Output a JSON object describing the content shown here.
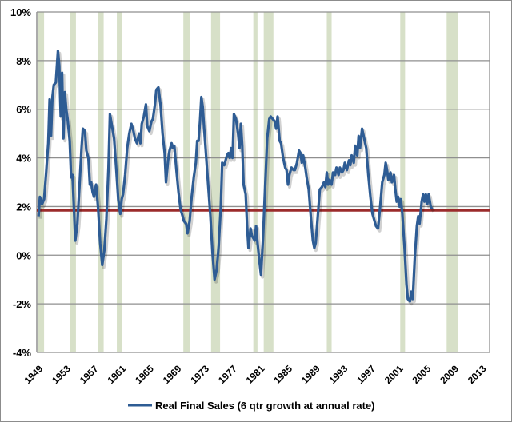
{
  "chart_data": {
    "type": "line",
    "title": "",
    "xlabel": "",
    "ylabel": "",
    "xlim": [
      1948.75,
      2014.1
    ],
    "ylim": [
      -4,
      10
    ],
    "grid": true,
    "legend_position": "bottom",
    "y_ticks": [
      {
        "value": 10,
        "label": "10%"
      },
      {
        "value": 8,
        "label": "8%"
      },
      {
        "value": 6,
        "label": "6%"
      },
      {
        "value": 4,
        "label": "4%"
      },
      {
        "value": 2,
        "label": "2%"
      },
      {
        "value": 0,
        "label": "0%"
      },
      {
        "value": -2,
        "label": "-2%"
      },
      {
        "value": -4,
        "label": "-4%"
      }
    ],
    "x_ticks": [
      "1949",
      "1953",
      "1957",
      "1961",
      "1965",
      "1969",
      "1973",
      "1977",
      "1981",
      "1985",
      "1989",
      "1993",
      "1997",
      "2001",
      "2005",
      "2009",
      "2013"
    ],
    "reference_line": {
      "value": 1.85,
      "color": "#9b2b2b"
    },
    "recessions": [
      [
        1948.9,
        1949.8
      ],
      [
        1953.5,
        1954.4
      ],
      [
        1957.6,
        1958.4
      ],
      [
        1960.3,
        1961.1
      ],
      [
        1969.9,
        1970.9
      ],
      [
        1973.9,
        1975.2
      ],
      [
        1980.0,
        1980.6
      ],
      [
        1981.5,
        1982.9
      ],
      [
        1990.6,
        1991.3
      ],
      [
        2001.2,
        2001.9
      ],
      [
        2007.9,
        2009.5
      ]
    ],
    "recession_color": "#d7e0c8",
    "series": [
      {
        "name": "Real Final Sales (6 qtr growth at annual rate)",
        "color": "#2e5c94",
        "points": [
          [
            1949.0,
            1.6
          ],
          [
            1949.2,
            2.4
          ],
          [
            1949.5,
            2.1
          ],
          [
            1949.8,
            2.3
          ],
          [
            1950.1,
            3.4
          ],
          [
            1950.4,
            4.6
          ],
          [
            1950.6,
            6.4
          ],
          [
            1950.8,
            4.9
          ],
          [
            1951.0,
            6.5
          ],
          [
            1951.2,
            7.0
          ],
          [
            1951.5,
            7.1
          ],
          [
            1951.8,
            8.4
          ],
          [
            1952.0,
            7.8
          ],
          [
            1952.2,
            5.7
          ],
          [
            1952.4,
            7.5
          ],
          [
            1952.6,
            4.8
          ],
          [
            1952.8,
            6.7
          ],
          [
            1953.0,
            6.0
          ],
          [
            1953.2,
            5.6
          ],
          [
            1953.5,
            4.7
          ],
          [
            1953.7,
            3.2
          ],
          [
            1953.9,
            3.3
          ],
          [
            1954.1,
            2.0
          ],
          [
            1954.3,
            0.6
          ],
          [
            1954.6,
            1.3
          ],
          [
            1954.9,
            2.8
          ],
          [
            1955.2,
            4.4
          ],
          [
            1955.4,
            5.2
          ],
          [
            1955.7,
            5.1
          ],
          [
            1955.9,
            4.3
          ],
          [
            1956.2,
            4.0
          ],
          [
            1956.4,
            2.9
          ],
          [
            1956.6,
            3.0
          ],
          [
            1956.8,
            2.6
          ],
          [
            1957.0,
            2.4
          ],
          [
            1957.3,
            2.9
          ],
          [
            1957.6,
            1.9
          ],
          [
            1957.9,
            0.5
          ],
          [
            1958.2,
            -0.4
          ],
          [
            1958.5,
            0.2
          ],
          [
            1958.8,
            1.5
          ],
          [
            1959.1,
            3.6
          ],
          [
            1959.3,
            5.8
          ],
          [
            1959.6,
            5.3
          ],
          [
            1959.9,
            4.8
          ],
          [
            1960.2,
            3.6
          ],
          [
            1960.5,
            2.3
          ],
          [
            1960.8,
            1.7
          ],
          [
            1961.0,
            2.3
          ],
          [
            1961.2,
            2.5
          ],
          [
            1961.5,
            3.3
          ],
          [
            1961.8,
            4.4
          ],
          [
            1962.1,
            5.0
          ],
          [
            1962.4,
            5.4
          ],
          [
            1962.7,
            5.1
          ],
          [
            1962.9,
            4.8
          ],
          [
            1963.2,
            4.6
          ],
          [
            1963.5,
            5.0
          ],
          [
            1963.7,
            4.6
          ],
          [
            1963.9,
            5.4
          ],
          [
            1964.2,
            5.7
          ],
          [
            1964.5,
            6.2
          ],
          [
            1964.7,
            5.3
          ],
          [
            1965.0,
            5.1
          ],
          [
            1965.3,
            5.5
          ],
          [
            1965.5,
            5.6
          ],
          [
            1965.8,
            6.2
          ],
          [
            1966.0,
            6.8
          ],
          [
            1966.3,
            6.9
          ],
          [
            1966.6,
            6.2
          ],
          [
            1966.9,
            5.0
          ],
          [
            1967.2,
            4.2
          ],
          [
            1967.4,
            3.0
          ],
          [
            1967.7,
            3.9
          ],
          [
            1967.9,
            4.3
          ],
          [
            1968.2,
            4.6
          ],
          [
            1968.4,
            4.4
          ],
          [
            1968.6,
            4.5
          ],
          [
            1968.9,
            3.5
          ],
          [
            1969.2,
            2.6
          ],
          [
            1969.5,
            1.9
          ],
          [
            1969.8,
            1.6
          ],
          [
            1970.0,
            1.4
          ],
          [
            1970.3,
            1.3
          ],
          [
            1970.5,
            0.9
          ],
          [
            1970.8,
            1.4
          ],
          [
            1971.1,
            2.4
          ],
          [
            1971.4,
            3.2
          ],
          [
            1971.7,
            3.8
          ],
          [
            1971.9,
            4.7
          ],
          [
            1972.1,
            4.7
          ],
          [
            1972.3,
            5.5
          ],
          [
            1972.5,
            6.5
          ],
          [
            1972.7,
            6.1
          ],
          [
            1972.9,
            5.2
          ],
          [
            1973.2,
            4.0
          ],
          [
            1973.5,
            2.8
          ],
          [
            1973.8,
            1.6
          ],
          [
            1974.1,
            0.1
          ],
          [
            1974.4,
            -1.0
          ],
          [
            1974.7,
            -0.6
          ],
          [
            1975.0,
            0.4
          ],
          [
            1975.3,
            2.0
          ],
          [
            1975.5,
            3.8
          ],
          [
            1975.8,
            3.7
          ],
          [
            1976.0,
            3.9
          ],
          [
            1976.2,
            4.1
          ],
          [
            1976.4,
            4.2
          ],
          [
            1976.6,
            4.0
          ],
          [
            1976.8,
            4.4
          ],
          [
            1977.0,
            4.0
          ],
          [
            1977.2,
            5.8
          ],
          [
            1977.5,
            5.6
          ],
          [
            1977.8,
            5.0
          ],
          [
            1978.0,
            4.4
          ],
          [
            1978.2,
            5.4
          ],
          [
            1978.4,
            4.5
          ],
          [
            1978.6,
            2.9
          ],
          [
            1978.9,
            2.5
          ],
          [
            1979.1,
            1.2
          ],
          [
            1979.3,
            0.3
          ],
          [
            1979.6,
            1.1
          ],
          [
            1979.8,
            0.8
          ],
          [
            1980.0,
            0.7
          ],
          [
            1980.2,
            0.6
          ],
          [
            1980.4,
            1.2
          ],
          [
            1980.6,
            0.5
          ],
          [
            1980.9,
            -0.3
          ],
          [
            1981.1,
            -0.8
          ],
          [
            1981.4,
            0.7
          ],
          [
            1981.7,
            2.8
          ],
          [
            1982.0,
            4.8
          ],
          [
            1982.3,
            5.6
          ],
          [
            1982.5,
            5.7
          ],
          [
            1982.8,
            5.6
          ],
          [
            1983.1,
            5.5
          ],
          [
            1983.3,
            5.2
          ],
          [
            1983.5,
            5.7
          ],
          [
            1983.8,
            4.7
          ],
          [
            1984.0,
            4.6
          ],
          [
            1984.3,
            4.0
          ],
          [
            1984.6,
            3.6
          ],
          [
            1984.8,
            3.5
          ],
          [
            1985.0,
            2.9
          ],
          [
            1985.2,
            3.3
          ],
          [
            1985.5,
            3.6
          ],
          [
            1985.8,
            3.5
          ],
          [
            1986.0,
            3.5
          ],
          [
            1986.3,
            3.8
          ],
          [
            1986.6,
            4.3
          ],
          [
            1986.8,
            4.2
          ],
          [
            1987.0,
            3.8
          ],
          [
            1987.2,
            4.1
          ],
          [
            1987.5,
            3.6
          ],
          [
            1987.7,
            3.2
          ],
          [
            1988.0,
            2.7
          ],
          [
            1988.3,
            1.6
          ],
          [
            1988.6,
            0.6
          ],
          [
            1988.8,
            0.3
          ],
          [
            1989.0,
            0.5
          ],
          [
            1989.3,
            1.6
          ],
          [
            1989.6,
            2.7
          ],
          [
            1989.9,
            2.8
          ],
          [
            1990.2,
            3.0
          ],
          [
            1990.4,
            2.8
          ],
          [
            1990.6,
            3.4
          ],
          [
            1990.8,
            2.9
          ],
          [
            1991.0,
            3.1
          ],
          [
            1991.3,
            2.9
          ],
          [
            1991.5,
            3.4
          ],
          [
            1991.8,
            3.3
          ],
          [
            1992.0,
            3.6
          ],
          [
            1992.3,
            3.3
          ],
          [
            1992.5,
            3.6
          ],
          [
            1992.8,
            3.4
          ],
          [
            1993.0,
            3.5
          ],
          [
            1993.2,
            3.8
          ],
          [
            1993.5,
            3.5
          ],
          [
            1993.8,
            3.9
          ],
          [
            1994.0,
            3.7
          ],
          [
            1994.2,
            4.1
          ],
          [
            1994.5,
            3.8
          ],
          [
            1994.7,
            4.5
          ],
          [
            1995.0,
            4.1
          ],
          [
            1995.2,
            4.9
          ],
          [
            1995.4,
            4.4
          ],
          [
            1995.7,
            5.2
          ],
          [
            1996.0,
            4.8
          ],
          [
            1996.3,
            4.4
          ],
          [
            1996.6,
            3.3
          ],
          [
            1996.9,
            2.4
          ],
          [
            1997.2,
            1.7
          ],
          [
            1997.5,
            1.4
          ],
          [
            1997.7,
            1.2
          ],
          [
            1998.0,
            1.1
          ],
          [
            1998.3,
            2.0
          ],
          [
            1998.6,
            3.0
          ],
          [
            1998.9,
            3.3
          ],
          [
            1999.1,
            3.8
          ],
          [
            1999.3,
            3.5
          ],
          [
            1999.5,
            3.1
          ],
          [
            1999.8,
            3.4
          ],
          [
            2000.0,
            3.0
          ],
          [
            2000.3,
            3.3
          ],
          [
            2000.5,
            2.7
          ],
          [
            2000.7,
            2.2
          ],
          [
            2000.9,
            2.4
          ],
          [
            2001.1,
            2.0
          ],
          [
            2001.3,
            2.3
          ],
          [
            2001.5,
            1.7
          ],
          [
            2001.8,
            0.4
          ],
          [
            2002.1,
            -1.2
          ],
          [
            2002.3,
            -1.8
          ],
          [
            2002.6,
            -1.9
          ],
          [
            2002.8,
            -1.5
          ],
          [
            2003.0,
            -1.8
          ],
          [
            2003.3,
            -0.1
          ],
          [
            2003.6,
            1.2
          ],
          [
            2003.8,
            1.6
          ],
          [
            2004.0,
            1.3
          ],
          [
            2004.3,
            2.2
          ],
          [
            2004.5,
            2.5
          ],
          [
            2004.7,
            2.2
          ],
          [
            2004.9,
            2.5
          ],
          [
            2005.1,
            2.1
          ],
          [
            2005.3,
            2.5
          ],
          [
            2005.6,
            2.0
          ],
          [
            2005.8,
            1.9
          ]
        ]
      }
    ]
  }
}
